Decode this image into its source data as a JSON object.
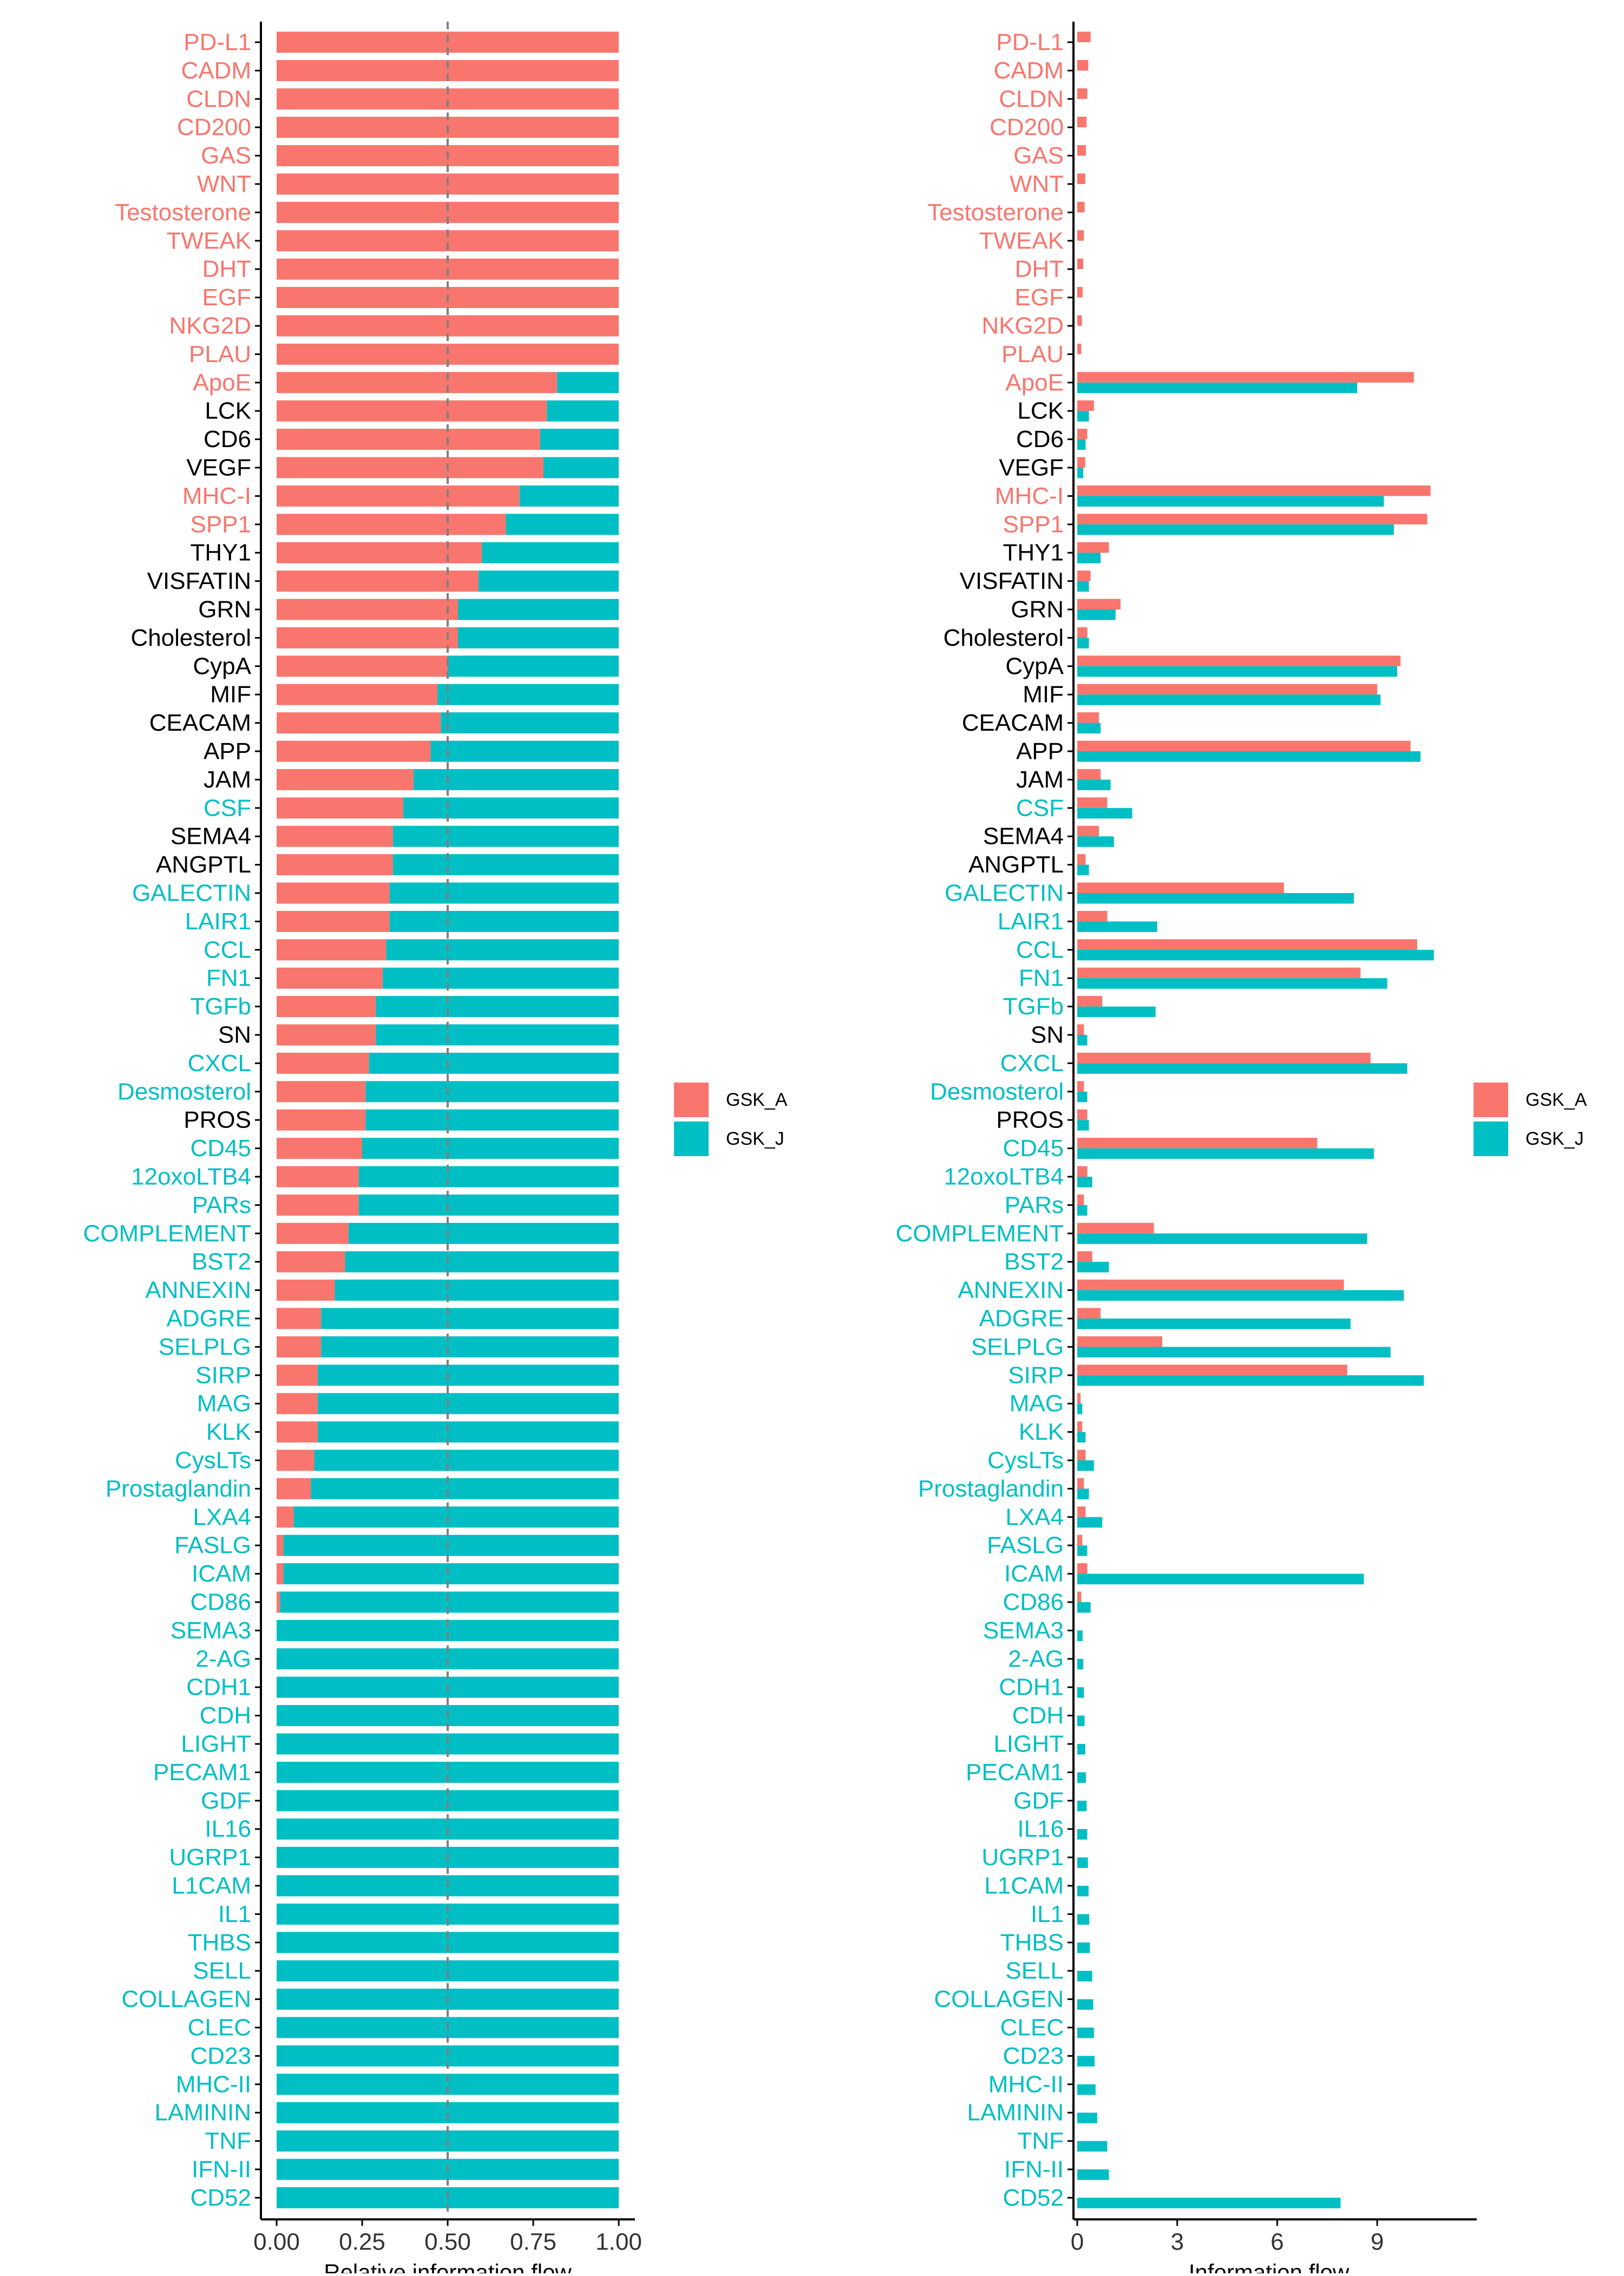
{
  "colors": {
    "GSK_A": "#F8766D",
    "GSK_J": "#00BFC4",
    "neutral": "#000000",
    "dashed": "#7f7f7f"
  },
  "legend": [
    {
      "key": "GSK_A",
      "label": "GSK_A"
    },
    {
      "key": "GSK_J",
      "label": "GSK_J"
    }
  ],
  "chart_data": [
    {
      "type": "bar",
      "orientation": "horizontal",
      "stacked": true,
      "xlabel": "Relative information flow",
      "xlim": [
        0,
        1
      ],
      "xticks": [
        "0.00",
        "0.25",
        "0.50",
        "0.75",
        "1.00"
      ],
      "reference_line": 0.5,
      "grid": false,
      "legend_position": "right",
      "categories": [
        "PD-L1",
        "CADM",
        "CLDN",
        "CD200",
        "GAS",
        "WNT",
        "Testosterone",
        "TWEAK",
        "DHT",
        "EGF",
        "NKG2D",
        "PLAU",
        "ApoE",
        "LCK",
        "CD6",
        "VEGF",
        "MHC-I",
        "SPP1",
        "THY1",
        "VISFATIN",
        "GRN",
        "Cholesterol",
        "CypA",
        "MIF",
        "CEACAM",
        "APP",
        "JAM",
        "CSF",
        "SEMA4",
        "ANGPTL",
        "GALECTIN",
        "LAIR1",
        "CCL",
        "FN1",
        "TGFb",
        "SN",
        "CXCL",
        "Desmosterol",
        "PROS",
        "CD45",
        "12oxoLTB4",
        "PARs",
        "COMPLEMENT",
        "BST2",
        "ANNEXIN",
        "ADGRE",
        "SELPLG",
        "SIRP",
        "MAG",
        "KLK",
        "CysLTs",
        "Prostaglandin",
        "LXA4",
        "FASLG",
        "ICAM",
        "CD86",
        "SEMA3",
        "2-AG",
        "CDH1",
        "CDH",
        "LIGHT",
        "PECAM1",
        "GDF",
        "IL16",
        "UGRP1",
        "L1CAM",
        "IL1",
        "THBS",
        "SELL",
        "COLLAGEN",
        "CLEC",
        "CD23",
        "MHC-II",
        "LAMININ",
        "TNF",
        "IFN-II",
        "CD52"
      ],
      "label_group": [
        "A",
        "A",
        "A",
        "A",
        "A",
        "A",
        "A",
        "A",
        "A",
        "A",
        "A",
        "A",
        "A",
        "N",
        "N",
        "N",
        "A",
        "A",
        "N",
        "N",
        "N",
        "N",
        "N",
        "N",
        "N",
        "N",
        "N",
        "J",
        "N",
        "N",
        "J",
        "J",
        "J",
        "J",
        "J",
        "N",
        "J",
        "J",
        "N",
        "J",
        "J",
        "J",
        "J",
        "J",
        "J",
        "J",
        "J",
        "J",
        "J",
        "J",
        "J",
        "J",
        "J",
        "J",
        "J",
        "J",
        "J",
        "J",
        "J",
        "J",
        "J",
        "J",
        "J",
        "J",
        "J",
        "J",
        "J",
        "J",
        "J",
        "J",
        "J",
        "J",
        "J",
        "J",
        "J",
        "J",
        "J"
      ],
      "series": [
        {
          "name": "GSK_A",
          "values": [
            1,
            1,
            1,
            1,
            1,
            1,
            1,
            1,
            1,
            1,
            1,
            1,
            0.82,
            0.79,
            0.77,
            0.78,
            0.71,
            0.67,
            0.6,
            0.59,
            0.53,
            0.53,
            0.5,
            0.47,
            0.48,
            0.45,
            0.4,
            0.37,
            0.34,
            0.34,
            0.33,
            0.33,
            0.32,
            0.31,
            0.29,
            0.29,
            0.27,
            0.26,
            0.26,
            0.25,
            0.24,
            0.24,
            0.21,
            0.2,
            0.17,
            0.13,
            0.13,
            0.12,
            0.12,
            0.12,
            0.11,
            0.1,
            0.05,
            0.02,
            0.02,
            0.01,
            0,
            0,
            0,
            0,
            0,
            0,
            0,
            0,
            0,
            0,
            0,
            0,
            0,
            0,
            0,
            0,
            0,
            0,
            0,
            0,
            0
          ]
        },
        {
          "name": "GSK_J",
          "values": [
            0,
            0,
            0,
            0,
            0,
            0,
            0,
            0,
            0,
            0,
            0,
            0,
            0.18,
            0.21,
            0.23,
            0.22,
            0.29,
            0.33,
            0.4,
            0.41,
            0.47,
            0.47,
            0.5,
            0.53,
            0.52,
            0.55,
            0.6,
            0.63,
            0.66,
            0.66,
            0.67,
            0.67,
            0.68,
            0.69,
            0.71,
            0.71,
            0.73,
            0.74,
            0.74,
            0.75,
            0.76,
            0.76,
            0.79,
            0.8,
            0.83,
            0.87,
            0.87,
            0.88,
            0.88,
            0.88,
            0.89,
            0.9,
            0.95,
            0.98,
            0.98,
            0.99,
            1,
            1,
            1,
            1,
            1,
            1,
            1,
            1,
            1,
            1,
            1,
            1,
            1,
            1,
            1,
            1,
            1,
            1,
            1,
            1,
            1
          ]
        }
      ]
    },
    {
      "type": "bar",
      "orientation": "horizontal",
      "stacked": false,
      "xlabel": "Information flow",
      "xlim": [
        0,
        11.5
      ],
      "xticks": [
        "0",
        "3",
        "6",
        "9"
      ],
      "grid": false,
      "legend_position": "right",
      "categories": [
        "PD-L1",
        "CADM",
        "CLDN",
        "CD200",
        "GAS",
        "WNT",
        "Testosterone",
        "TWEAK",
        "DHT",
        "EGF",
        "NKG2D",
        "PLAU",
        "ApoE",
        "LCK",
        "CD6",
        "VEGF",
        "MHC-I",
        "SPP1",
        "THY1",
        "VISFATIN",
        "GRN",
        "Cholesterol",
        "CypA",
        "MIF",
        "CEACAM",
        "APP",
        "JAM",
        "CSF",
        "SEMA4",
        "ANGPTL",
        "GALECTIN",
        "LAIR1",
        "CCL",
        "FN1",
        "TGFb",
        "SN",
        "CXCL",
        "Desmosterol",
        "PROS",
        "CD45",
        "12oxoLTB4",
        "PARs",
        "COMPLEMENT",
        "BST2",
        "ANNEXIN",
        "ADGRE",
        "SELPLG",
        "SIRP",
        "MAG",
        "KLK",
        "CysLTs",
        "Prostaglandin",
        "LXA4",
        "FASLG",
        "ICAM",
        "CD86",
        "SEMA3",
        "2-AG",
        "CDH1",
        "CDH",
        "LIGHT",
        "PECAM1",
        "GDF",
        "IL16",
        "UGRP1",
        "L1CAM",
        "IL1",
        "THBS",
        "SELL",
        "COLLAGEN",
        "CLEC",
        "CD23",
        "MHC-II",
        "LAMININ",
        "TNF",
        "IFN-II",
        "CD52"
      ],
      "label_group": [
        "A",
        "A",
        "A",
        "A",
        "A",
        "A",
        "A",
        "A",
        "A",
        "A",
        "A",
        "A",
        "A",
        "N",
        "N",
        "N",
        "A",
        "A",
        "N",
        "N",
        "N",
        "N",
        "N",
        "N",
        "N",
        "N",
        "N",
        "J",
        "N",
        "N",
        "J",
        "J",
        "J",
        "J",
        "J",
        "N",
        "J",
        "J",
        "N",
        "J",
        "J",
        "J",
        "J",
        "J",
        "J",
        "J",
        "J",
        "J",
        "J",
        "J",
        "J",
        "J",
        "J",
        "J",
        "J",
        "J",
        "J",
        "J",
        "J",
        "J",
        "J",
        "J",
        "J",
        "J",
        "J",
        "J",
        "J",
        "J",
        "J",
        "J",
        "J",
        "J",
        "J",
        "J",
        "J",
        "J",
        "J"
      ],
      "series": [
        {
          "name": "GSK_A",
          "values": [
            0.4,
            0.33,
            0.3,
            0.28,
            0.26,
            0.24,
            0.22,
            0.2,
            0.18,
            0.16,
            0.14,
            0.12,
            10.1,
            0.5,
            0.3,
            0.24,
            10.6,
            10.5,
            0.95,
            0.4,
            1.3,
            0.3,
            9.7,
            9.0,
            0.65,
            10.0,
            0.7,
            0.9,
            0.65,
            0.25,
            6.2,
            0.9,
            10.2,
            8.5,
            0.75,
            0.2,
            8.8,
            0.2,
            0.3,
            7.2,
            0.3,
            0.2,
            2.3,
            0.45,
            8.0,
            0.7,
            2.55,
            8.1,
            0.1,
            0.15,
            0.25,
            0.2,
            0.25,
            0.15,
            0.3,
            0.12,
            0,
            0,
            0,
            0,
            0,
            0,
            0,
            0,
            0,
            0,
            0,
            0,
            0,
            0,
            0,
            0,
            0,
            0,
            0,
            0,
            0
          ]
        },
        {
          "name": "GSK_J",
          "values": [
            0,
            0,
            0,
            0,
            0,
            0,
            0,
            0,
            0,
            0,
            0,
            0,
            8.4,
            0.35,
            0.25,
            0.18,
            9.2,
            9.5,
            0.7,
            0.35,
            1.15,
            0.35,
            9.6,
            9.1,
            0.7,
            10.3,
            1.0,
            1.65,
            1.1,
            0.35,
            8.3,
            2.4,
            10.7,
            9.3,
            2.35,
            0.3,
            9.9,
            0.3,
            0.35,
            8.9,
            0.45,
            0.3,
            8.7,
            0.95,
            9.8,
            8.2,
            9.4,
            10.4,
            0.15,
            0.25,
            0.5,
            0.35,
            0.75,
            0.3,
            8.6,
            0.4,
            0.16,
            0.18,
            0.2,
            0.22,
            0.24,
            0.26,
            0.28,
            0.3,
            0.32,
            0.34,
            0.36,
            0.38,
            0.45,
            0.48,
            0.5,
            0.52,
            0.55,
            0.6,
            0.9,
            0.95,
            7.9
          ]
        }
      ]
    }
  ]
}
